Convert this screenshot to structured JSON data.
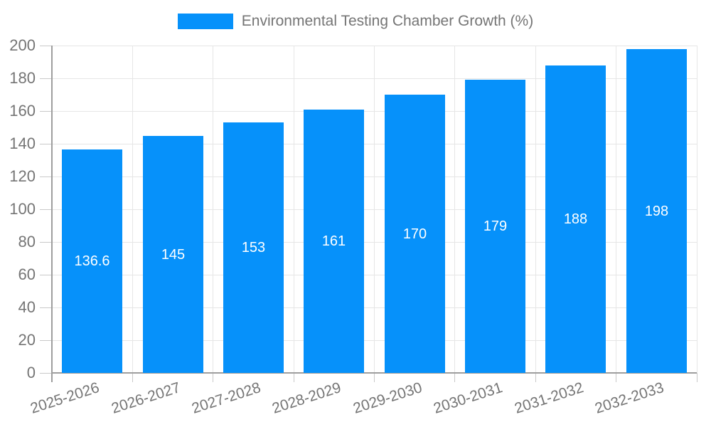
{
  "legend": {
    "label": "Environmental Testing Chamber Growth (%)"
  },
  "chart_data": {
    "type": "bar",
    "title": "Environmental Testing Chamber Growth (%)",
    "categories": [
      "2025-2026",
      "2026-2027",
      "2027-2028",
      "2028-2029",
      "2029-2030",
      "2030-2031",
      "2031-2032",
      "2032-2033"
    ],
    "values": [
      136.6,
      145,
      153,
      161,
      170,
      179,
      188,
      198
    ],
    "value_labels": [
      "136.6",
      "145",
      "153",
      "161",
      "170",
      "179",
      "188",
      "198"
    ],
    "xlabel": "",
    "ylabel": "",
    "ylim": [
      0,
      200
    ],
    "yticks": [
      0,
      20,
      40,
      60,
      80,
      100,
      120,
      140,
      160,
      180,
      200
    ],
    "grid": true,
    "legend_position": "top-center",
    "colors": {
      "bar": "#0691fa",
      "grid": "#e6e6e6",
      "axis": "#9e9e9e",
      "tick": "#c9c9c9",
      "axis_text": "#757575",
      "value_text": "#ffffff",
      "background": "#ffffff"
    }
  }
}
